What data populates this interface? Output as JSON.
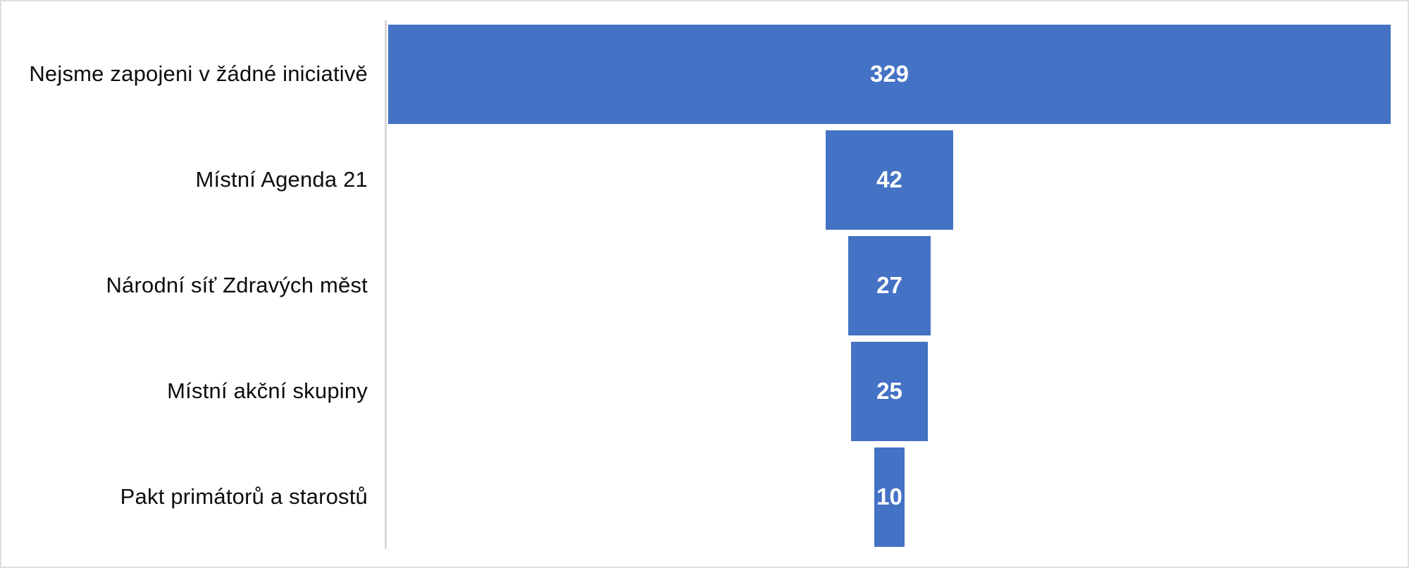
{
  "chart_data": {
    "type": "bar",
    "subtype": "funnel-horizontal-centered",
    "title": "",
    "xlabel": "",
    "ylabel": "",
    "categories": [
      "Nejsme zapojeni v žádné iniciativě",
      "Místní Agenda 21",
      "Národní síť Zdravých měst",
      "Místní akční skupiny",
      "Pakt primátorů a starostů"
    ],
    "values": [
      329,
      42,
      27,
      25,
      10
    ],
    "data_labels": [
      "329",
      "42",
      "27",
      "25",
      "10"
    ],
    "xlim": [
      0,
      329
    ],
    "grid": false,
    "legend": false,
    "colors": {
      "bar_fill": "#4472C4",
      "data_label_text": "#FFFFFF",
      "category_label_text": "#0D0D0D",
      "category_axis_line": "#D9D9D9",
      "background": "#FFFFFF",
      "frame_border": "#E0E0E0"
    }
  }
}
